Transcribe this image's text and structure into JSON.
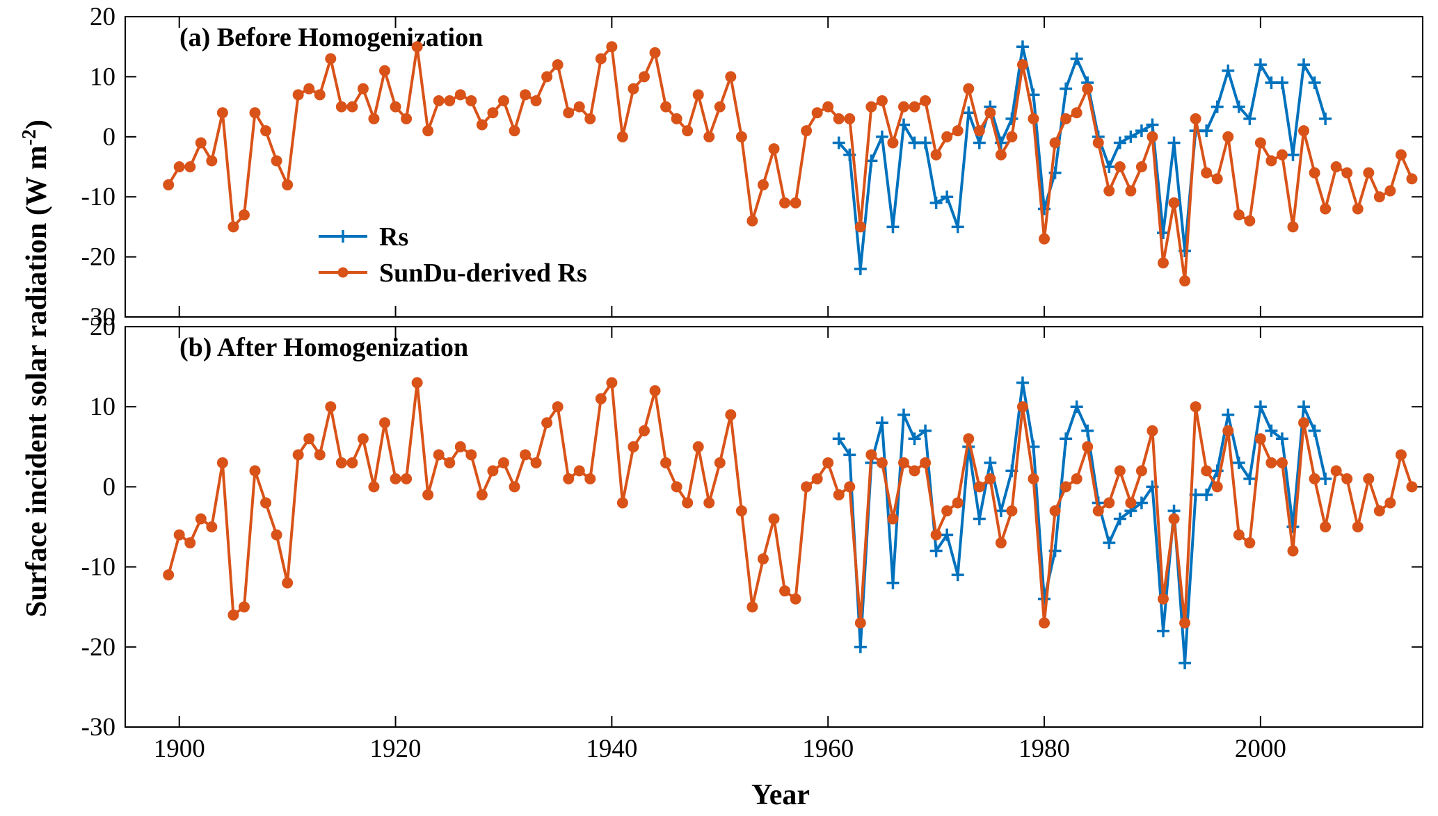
{
  "chart_data": {
    "type": "line",
    "xlabel": "Year",
    "ylabel": "Surface incident solar radiation (W m-2)",
    "ylabel_parts": {
      "main": "Surface incident solar radiation (W m",
      "sup": "-2",
      "close": ")"
    },
    "xlim": [
      1895,
      2015
    ],
    "ylim": [
      -30,
      20
    ],
    "x_ticks": [
      1900,
      1920,
      1940,
      1960,
      1980,
      2000
    ],
    "y_ticks": [
      20,
      10,
      0,
      -10,
      -20,
      -30
    ],
    "grid": false,
    "legend_placement": "upper-left inside panel (a)",
    "colors": {
      "Rs": "#0072BD",
      "SunDu-derived Rs": "#D95319"
    },
    "panels": [
      {
        "title": "(a) Before Homogenization",
        "series": [
          {
            "name": "Rs",
            "marker": "plus",
            "x": [
              1961,
              1962,
              1963,
              1964,
              1965,
              1966,
              1967,
              1968,
              1969,
              1970,
              1971,
              1972,
              1973,
              1974,
              1975,
              1976,
              1977,
              1978,
              1979,
              1980,
              1981,
              1982,
              1983,
              1984,
              1985,
              1986,
              1987,
              1988,
              1989,
              1990,
              1991,
              1992,
              1993,
              1994,
              1995,
              1996,
              1997,
              1998,
              1999,
              2000,
              2001,
              2002,
              2003,
              2004,
              2005,
              2006
            ],
            "y": [
              -1,
              -3,
              -22,
              -4,
              0,
              -15,
              2,
              -1,
              -1,
              -11,
              -10,
              -15,
              4,
              -1,
              5,
              -1,
              3,
              15,
              7,
              -12,
              -6,
              8,
              13,
              9,
              0,
              -5,
              -1,
              0,
              1,
              2,
              -16,
              -1,
              -19,
              1,
              1,
              5,
              11,
              5,
              3,
              12,
              9,
              9,
              -3,
              12,
              9,
              3
            ]
          },
          {
            "name": "SunDu-derived Rs",
            "marker": "circle",
            "x": [
              1899,
              1900,
              1901,
              1902,
              1903,
              1904,
              1905,
              1906,
              1907,
              1908,
              1909,
              1910,
              1911,
              1912,
              1913,
              1914,
              1915,
              1916,
              1917,
              1918,
              1919,
              1920,
              1921,
              1922,
              1923,
              1924,
              1925,
              1926,
              1927,
              1928,
              1929,
              1930,
              1931,
              1932,
              1933,
              1934,
              1935,
              1936,
              1937,
              1938,
              1939,
              1940,
              1941,
              1942,
              1943,
              1944,
              1945,
              1946,
              1947,
              1948,
              1949,
              1950,
              1951,
              1952,
              1953,
              1954,
              1955,
              1956,
              1957,
              1958,
              1959,
              1960,
              1961,
              1962,
              1963,
              1964,
              1965,
              1966,
              1967,
              1968,
              1969,
              1970,
              1971,
              1972,
              1973,
              1974,
              1975,
              1976,
              1977,
              1978,
              1979,
              1980,
              1981,
              1982,
              1983,
              1984,
              1985,
              1986,
              1987,
              1988,
              1989,
              1990,
              1991,
              1992,
              1993,
              1994,
              1995,
              1996,
              1997,
              1998,
              1999,
              2000,
              2001,
              2002,
              2003,
              2004,
              2005,
              2006,
              2007,
              2008,
              2009,
              2010,
              2011,
              2012,
              2013,
              2014
            ],
            "y": [
              -8,
              -5,
              -5,
              -1,
              -4,
              4,
              -15,
              -13,
              4,
              1,
              -4,
              -8,
              7,
              8,
              7,
              13,
              5,
              5,
              8,
              3,
              11,
              5,
              3,
              15,
              1,
              6,
              6,
              7,
              6,
              2,
              4,
              6,
              1,
              7,
              6,
              10,
              12,
              4,
              5,
              3,
              13,
              15,
              0,
              8,
              10,
              14,
              5,
              3,
              1,
              7,
              0,
              5,
              10,
              0,
              -14,
              -8,
              -2,
              -11,
              -11,
              1,
              4,
              5,
              3,
              3,
              -15,
              5,
              6,
              -1,
              5,
              5,
              6,
              -3,
              0,
              1,
              8,
              1,
              4,
              -3,
              0,
              12,
              3,
              -17,
              -1,
              3,
              4,
              8,
              -1,
              -9,
              -5,
              -9,
              -5,
              0,
              -21,
              -11,
              -24,
              3,
              -6,
              -7,
              0,
              -13,
              -14,
              -1,
              -4,
              -3,
              -15,
              1,
              -6,
              -12,
              -5,
              -6,
              -12,
              -6,
              -10,
              -9,
              -3,
              -7
            ]
          }
        ]
      },
      {
        "title": "(b) After Homogenization",
        "series": [
          {
            "name": "Rs",
            "marker": "plus",
            "x": [
              1961,
              1962,
              1963,
              1964,
              1965,
              1966,
              1967,
              1968,
              1969,
              1970,
              1971,
              1972,
              1973,
              1974,
              1975,
              1976,
              1977,
              1978,
              1979,
              1980,
              1981,
              1982,
              1983,
              1984,
              1985,
              1986,
              1987,
              1988,
              1989,
              1990,
              1991,
              1992,
              1993,
              1994,
              1995,
              1996,
              1997,
              1998,
              1999,
              2000,
              2001,
              2002,
              2003,
              2004,
              2005,
              2006
            ],
            "y": [
              6,
              4,
              -20,
              3,
              8,
              -12,
              9,
              6,
              7,
              -8,
              -6,
              -11,
              5,
              -4,
              3,
              -3,
              2,
              13,
              5,
              -14,
              -8,
              6,
              10,
              7,
              -2,
              -7,
              -4,
              -3,
              -2,
              0,
              -18,
              -3,
              -22,
              -1,
              -1,
              2,
              9,
              3,
              1,
              10,
              7,
              6,
              -5,
              10,
              7,
              1
            ]
          },
          {
            "name": "SunDu-derived Rs",
            "marker": "circle",
            "x": [
              1899,
              1900,
              1901,
              1902,
              1903,
              1904,
              1905,
              1906,
              1907,
              1908,
              1909,
              1910,
              1911,
              1912,
              1913,
              1914,
              1915,
              1916,
              1917,
              1918,
              1919,
              1920,
              1921,
              1922,
              1923,
              1924,
              1925,
              1926,
              1927,
              1928,
              1929,
              1930,
              1931,
              1932,
              1933,
              1934,
              1935,
              1936,
              1937,
              1938,
              1939,
              1940,
              1941,
              1942,
              1943,
              1944,
              1945,
              1946,
              1947,
              1948,
              1949,
              1950,
              1951,
              1952,
              1953,
              1954,
              1955,
              1956,
              1957,
              1958,
              1959,
              1960,
              1961,
              1962,
              1963,
              1964,
              1965,
              1966,
              1967,
              1968,
              1969,
              1970,
              1971,
              1972,
              1973,
              1974,
              1975,
              1976,
              1977,
              1978,
              1979,
              1980,
              1981,
              1982,
              1983,
              1984,
              1985,
              1986,
              1987,
              1988,
              1989,
              1990,
              1991,
              1992,
              1993,
              1994,
              1995,
              1996,
              1997,
              1998,
              1999,
              2000,
              2001,
              2002,
              2003,
              2004,
              2005,
              2006,
              2007,
              2008,
              2009,
              2010,
              2011,
              2012,
              2013,
              2014
            ],
            "y": [
              -11,
              -6,
              -7,
              -4,
              -5,
              3,
              -16,
              -15,
              2,
              -2,
              -6,
              -12,
              4,
              6,
              4,
              10,
              3,
              3,
              6,
              0,
              8,
              1,
              1,
              13,
              -1,
              4,
              3,
              5,
              4,
              -1,
              2,
              3,
              0,
              4,
              3,
              8,
              10,
              1,
              2,
              1,
              11,
              13,
              -2,
              5,
              7,
              12,
              3,
              0,
              -2,
              5,
              -2,
              3,
              9,
              -3,
              -15,
              -9,
              -4,
              -13,
              -14,
              0,
              1,
              3,
              -1,
              0,
              -17,
              4,
              3,
              -4,
              3,
              2,
              3,
              -6,
              -3,
              -2,
              6,
              0,
              1,
              -7,
              -3,
              10,
              1,
              -17,
              -3,
              0,
              1,
              5,
              -3,
              -2,
              2,
              -2,
              2,
              7,
              -14,
              -4,
              -17,
              10,
              2,
              0,
              7,
              -6,
              -7,
              6,
              3,
              3,
              -8,
              8,
              1,
              -5,
              2,
              1,
              -5,
              1,
              -3,
              -2,
              4,
              0
            ]
          }
        ]
      }
    ]
  }
}
